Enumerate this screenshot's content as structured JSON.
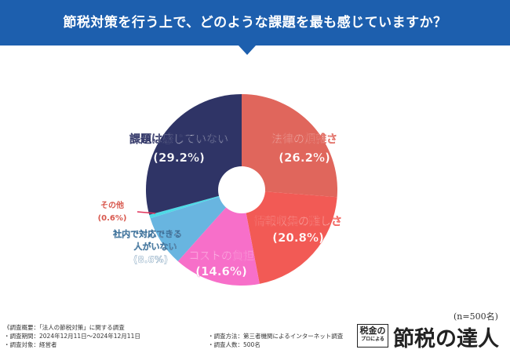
{
  "header": {
    "title": "節税対策を行う上で、どのような課題を最も感じていますか？"
  },
  "chart_data": {
    "type": "pie",
    "donut": true,
    "start_angle_deg": 0,
    "direction": "clockwise",
    "slices": [
      {
        "label": "法律の煩雑さ",
        "value_label": "(26.2%)",
        "value": 26.2,
        "color": "#e0665c"
      },
      {
        "label": "情報収集の難しさ",
        "value_label": "(20.8%)",
        "value": 20.8,
        "color": "#f25a55"
      },
      {
        "label": "コストの負担",
        "value_label": "(14.6%)",
        "value": 14.6,
        "color": "#f76fc9"
      },
      {
        "label": "社内で対応できる人がいない",
        "value_label": "(8.6%)",
        "value": 8.6,
        "color": "#68b5e0"
      },
      {
        "label": "その他",
        "value_label": "(0.6%)",
        "value": 0.6,
        "color": "#4fd9e6"
      },
      {
        "label": "課題は感じていない",
        "value_label": "(29.2%)",
        "value": 29.2,
        "color": "#2f3466"
      }
    ]
  },
  "sample_size": "(n=500名)",
  "footer": {
    "left": [
      "《調査概要：「法人の節税対策」に関する調査",
      "・調査期間：2024年12月11日〜2024年12月11日",
      "・調査対象：経営者"
    ],
    "right": [
      "・調査方法：第三者機関によるインターネット調査",
      "・調査人数：500名"
    ]
  },
  "logo": {
    "box_line1": "税金の",
    "box_line2": "プロによる",
    "text": "節税の達人"
  }
}
